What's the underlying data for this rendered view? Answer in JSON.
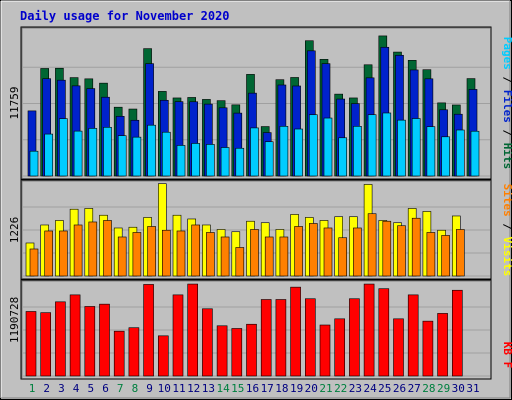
{
  "chart_data": {
    "type": "bar",
    "title": "Daily usage for November 2020",
    "categories": [
      "1",
      "2",
      "3",
      "4",
      "5",
      "6",
      "7",
      "8",
      "9",
      "10",
      "11",
      "12",
      "13",
      "14",
      "15",
      "16",
      "17",
      "18",
      "19",
      "20",
      "21",
      "22",
      "23",
      "24",
      "25",
      "26",
      "27",
      "28",
      "29",
      "30",
      "31"
    ],
    "weekend_days": [
      "1",
      "7",
      "8",
      "14",
      "15",
      "21",
      "22",
      "28",
      "29"
    ],
    "panels": [
      {
        "id": "hits_files_pages",
        "ymax_label": "11759",
        "ymax": 11759,
        "side_labels": [
          "Pages",
          "Files",
          "Hits"
        ],
        "series": [
          {
            "name": "Hits",
            "color": "#006633",
            "values": [
              0,
              8720,
              8740,
              7980,
              7880,
              7530,
              5580,
              5430,
              10330,
              6860,
              6330,
              6370,
              6210,
              6110,
              5770,
              8240,
              4010,
              7810,
              7990,
              10970,
              9460,
              6640,
              6330,
              9020,
              11360,
              10050,
              9380,
              8620,
              5930,
              5760,
              7900
            ]
          },
          {
            "name": "Files",
            "color": "#0022CC",
            "values": [
              5280,
              7890,
              7770,
              7310,
              7090,
              6390,
              4840,
              4520,
              9110,
              6140,
              6030,
              6020,
              5830,
              5530,
              5100,
              6720,
              3520,
              7380,
              7300,
              10150,
              9110,
              6240,
              5870,
              7960,
              10440,
              9790,
              8600,
              7880,
              5370,
              5010,
              7020
            ]
          },
          {
            "name": "Pages",
            "color": "#00CCFF",
            "values": [
              2010,
              3400,
              4650,
              3640,
              3860,
              3950,
              3270,
              3150,
              4120,
              3550,
              2480,
              2640,
              2560,
              2310,
              2250,
              3900,
              2780,
              4030,
              3810,
              4970,
              4700,
              3100,
              4030,
              4970,
              5110,
              4530,
              4660,
              4000,
              3180,
              3730,
              3630
            ]
          }
        ]
      },
      {
        "id": "visits_sites",
        "ymax_label": "1226",
        "ymax": 1226,
        "side_labels": [
          "Sites",
          "Visits"
        ],
        "series": [
          {
            "name": "Visits",
            "color": "#FFFF00",
            "values": [
              440,
              680,
              740,
              890,
              900,
              810,
              640,
              650,
              780,
              1230,
              810,
              760,
              680,
              620,
              590,
              730,
              710,
              620,
              820,
              780,
              740,
              790,
              790,
              1220,
              740,
              710,
              900,
              860,
              610,
              800,
              0
            ]
          },
          {
            "name": "Sites",
            "color": "#FF8000",
            "values": [
              360,
              600,
              600,
              680,
              720,
              740,
              520,
              580,
              660,
              610,
              600,
              680,
              580,
              520,
              380,
              620,
              520,
              520,
              660,
              700,
              640,
              510,
              640,
              830,
              730,
              670,
              770,
              580,
              540,
              620,
              0
            ]
          }
        ]
      },
      {
        "id": "kbytes",
        "ymax_label": "1190728",
        "ymax": 1190728,
        "side_labels": [
          "KB F"
        ],
        "series": [
          {
            "name": "KB F",
            "color": "#FF0000",
            "values": [
              835000,
              820000,
              960000,
              1050000,
              900000,
              930000,
              580000,
              625000,
              1185000,
              520000,
              1050000,
              1190000,
              870000,
              650000,
              615000,
              670000,
              990000,
              990000,
              1150000,
              1000000,
              660000,
              740000,
              1000000,
              1190000,
              1130000,
              740000,
              1050000,
              710000,
              810000,
              1110000,
              0
            ]
          }
        ]
      }
    ]
  }
}
